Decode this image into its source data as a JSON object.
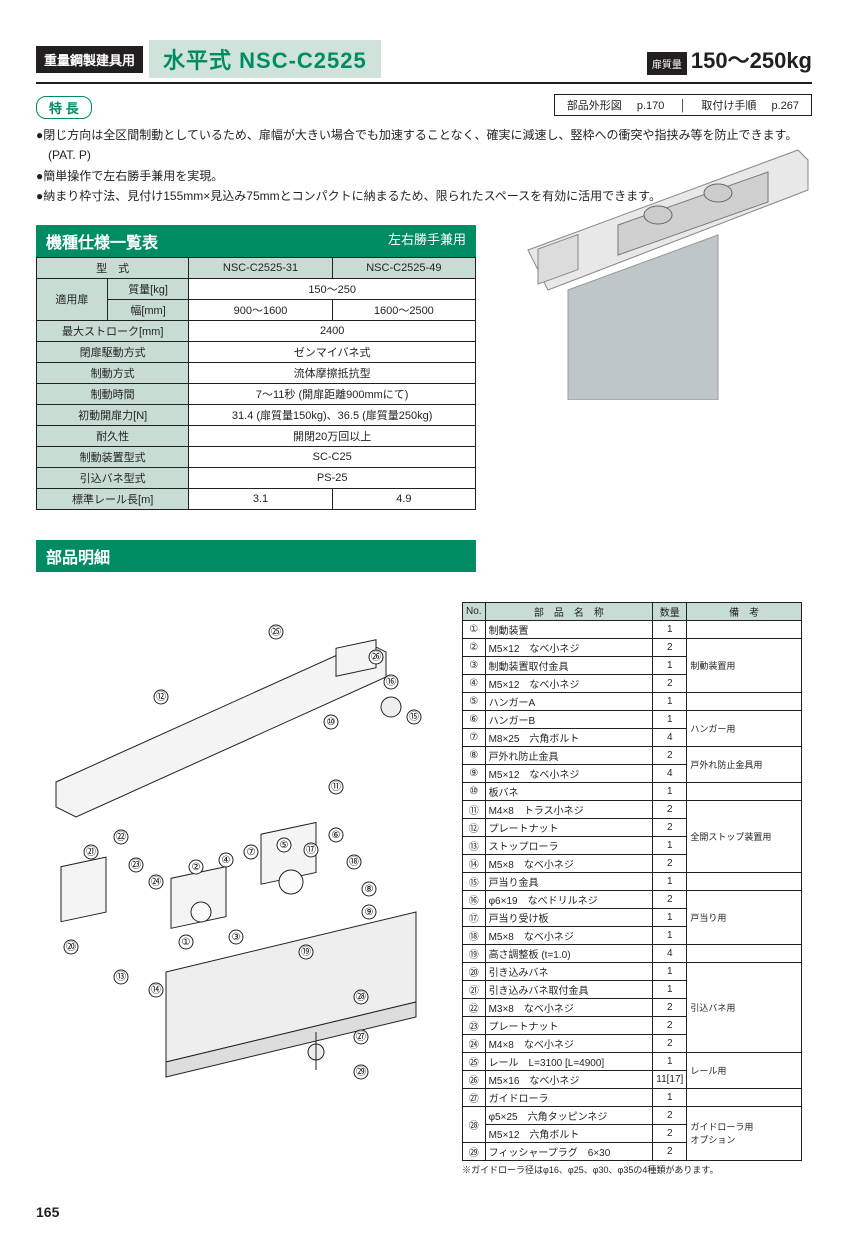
{
  "header": {
    "category": "重量鋼製建具用",
    "model": "水平式 NSC-C2525",
    "weight_label": "扉質量",
    "weight_value": "150〜250kg",
    "ref1_label": "部品外形図",
    "ref1_page": "p.170",
    "ref2_label": "取付け手順",
    "ref2_page": "p.267"
  },
  "features": {
    "title": "特 長",
    "lines": [
      "●閉じ方向は全区間制動としているため、扉幅が大きい場合でも加速することなく、確実に減速し、竪枠への衝突や指挟み等を防止できます。(PAT. P)",
      "●簡単操作で左右勝手兼用を実現。",
      "●納まり枠寸法、見付け155mm×見込み75mmとコンパクトに納まるため、限られたスペースを有効に活用できます。"
    ]
  },
  "spec_section": {
    "title": "機種仕様一覧表",
    "subtitle": "左右勝手兼用",
    "header_model": "型　式",
    "models": [
      "NSC-C2525-31",
      "NSC-C2525-49"
    ],
    "rows": [
      {
        "h1": "適用扉",
        "h2": "質量[kg]",
        "span": true,
        "v": "150〜250"
      },
      {
        "h1": "",
        "h2": "幅[mm]",
        "c1": "900〜1600",
        "c2": "1600〜2500"
      },
      {
        "h1": "最大ストローク[mm]",
        "span": true,
        "v": "2400"
      },
      {
        "h1": "閉扉駆動方式",
        "span": true,
        "v": "ゼンマイバネ式"
      },
      {
        "h1": "制動方式",
        "span": true,
        "v": "流体摩擦抵抗型"
      },
      {
        "h1": "制動時間",
        "span": true,
        "v": "7〜11秒 (開扉距離900mmにて)"
      },
      {
        "h1": "初動開扉力[N]",
        "span": true,
        "v": "31.4 (扉質量150kg)、36.5 (扉質量250kg)"
      },
      {
        "h1": "耐久性",
        "span": true,
        "v": "開閉20万回以上"
      },
      {
        "h1": "制動装置型式",
        "span": true,
        "v": "SC-C25"
      },
      {
        "h1": "引込バネ型式",
        "span": true,
        "v": "PS-25"
      },
      {
        "h1": "標準レール長[m]",
        "c1": "3.1",
        "c2": "4.9"
      }
    ]
  },
  "parts_section": {
    "title": "部品明細",
    "headers": {
      "no": "No.",
      "name": "部　品　名　称",
      "qty": "数量",
      "rem": "備　考"
    },
    "rows": [
      {
        "no": "①",
        "name": "制動装置",
        "qty": "1",
        "rem": "",
        "remspan": 0
      },
      {
        "no": "②",
        "name": "M5×12　なべ小ネジ",
        "qty": "2",
        "rem": "制動装置用",
        "remspan": 3
      },
      {
        "no": "③",
        "name": "制動装置取付金具",
        "qty": "1"
      },
      {
        "no": "④",
        "name": "M5×12　なべ小ネジ",
        "qty": "2"
      },
      {
        "no": "⑤",
        "name": "ハンガーA",
        "qty": "1",
        "rem": "",
        "remspan": 0
      },
      {
        "no": "⑥",
        "name": "ハンガーB",
        "qty": "1",
        "rem": "ハンガー用",
        "remspan": 2
      },
      {
        "no": "⑦",
        "name": "M8×25　六角ボルト",
        "qty": "4"
      },
      {
        "no": "⑧",
        "name": "戸外れ防止金具",
        "qty": "2",
        "rem": "戸外れ防止金具用",
        "remspan": 2
      },
      {
        "no": "⑨",
        "name": "M5×12　なべ小ネジ",
        "qty": "4"
      },
      {
        "no": "⑩",
        "name": "板バネ",
        "qty": "1",
        "rem": "",
        "remspan": 0
      },
      {
        "no": "⑪",
        "name": "M4×8　トラス小ネジ",
        "qty": "2",
        "rem": "全開ストップ装置用",
        "remspan": 4
      },
      {
        "no": "⑫",
        "name": "プレートナット",
        "qty": "2"
      },
      {
        "no": "⑬",
        "name": "ストップローラ",
        "qty": "1"
      },
      {
        "no": "⑭",
        "name": "M5×8　なべ小ネジ",
        "qty": "2"
      },
      {
        "no": "⑮",
        "name": "戸当り金具",
        "qty": "1",
        "rem": "",
        "remspan": 0
      },
      {
        "no": "⑯",
        "name": "φ6×19　なべドリルネジ",
        "qty": "2",
        "rem": "戸当り用",
        "remspan": 3
      },
      {
        "no": "⑰",
        "name": "戸当り受け板",
        "qty": "1"
      },
      {
        "no": "⑱",
        "name": "M5×8　なべ小ネジ",
        "qty": "1"
      },
      {
        "no": "⑲",
        "name": "高さ調整板 (t=1.0)",
        "qty": "4",
        "rem": "",
        "remspan": 0
      },
      {
        "no": "⑳",
        "name": "引き込みバネ",
        "qty": "1",
        "rem": "引込バネ用",
        "remspan": 5
      },
      {
        "no": "㉑",
        "name": "引き込みバネ取付金具",
        "qty": "1"
      },
      {
        "no": "㉒",
        "name": "M3×8　なべ小ネジ",
        "qty": "2"
      },
      {
        "no": "㉓",
        "name": "プレートナット",
        "qty": "2"
      },
      {
        "no": "㉔",
        "name": "M4×8　なべ小ネジ",
        "qty": "2"
      },
      {
        "no": "㉕",
        "name": "レール　L=3100 [L=4900]",
        "qty": "1",
        "rem": "レール用",
        "remspan": 2
      },
      {
        "no": "㉖",
        "name": "M5×16　なべ小ネジ",
        "qty": "11[17]"
      },
      {
        "no": "㉗",
        "name": "ガイドローラ",
        "qty": "1",
        "rem": "",
        "remspan": 0
      },
      {
        "no": "㉘",
        "name": "φ5×25　六角タッピンネジ",
        "qty": "2",
        "rem": "ガイドローラ用\nオプション",
        "remspan": 3,
        "double": "M5×12　六角ボルト",
        "dqty": "2"
      },
      {
        "no": "㉙",
        "name": "フィッシャープラグ　6×30",
        "qty": "2"
      }
    ],
    "footnote": "※ガイドローラ径はφ16、φ25、φ30、φ35の4種類があります。"
  },
  "page_number": "165",
  "colors": {
    "brand_green": "#008c63",
    "pale_green": "#c7ddd4",
    "ink": "#231f20"
  }
}
